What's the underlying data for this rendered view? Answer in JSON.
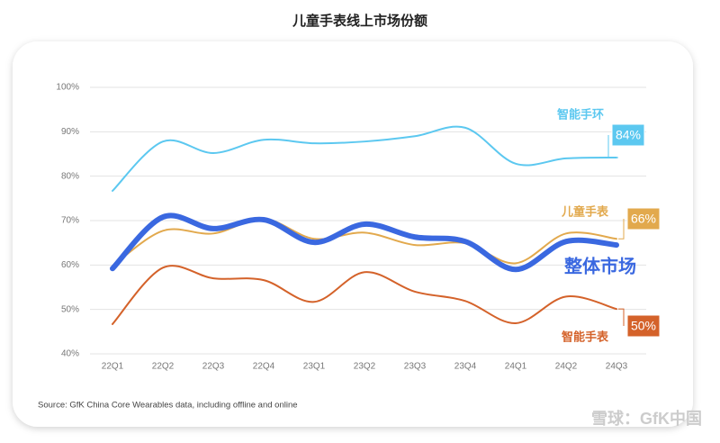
{
  "chart_data": {
    "type": "line",
    "title": "儿童手表线上市场份额",
    "categories": [
      "22Q1",
      "22Q2",
      "22Q3",
      "22Q4",
      "23Q1",
      "23Q2",
      "23Q3",
      "23Q4",
      "24Q1",
      "24Q2",
      "24Q3"
    ],
    "ylim": [
      40,
      100
    ],
    "yticks": [
      {
        "value": 40,
        "label": "40%"
      },
      {
        "value": 50,
        "label": "50%"
      },
      {
        "value": 60,
        "label": "60%"
      },
      {
        "value": 70,
        "label": "70%"
      },
      {
        "value": 80,
        "label": "80%"
      },
      {
        "value": 90,
        "label": "90%"
      },
      {
        "value": 100,
        "label": "100%"
      }
    ],
    "grid": true,
    "series": [
      {
        "name": "智能手环",
        "color": "#5cc8f0",
        "values": [
          76.7,
          87.8,
          85.2,
          88.2,
          87.4,
          87.8,
          89,
          90.9,
          82.8,
          84,
          84.2
        ],
        "value_labels": [
          null,
          null,
          null,
          null,
          null,
          null,
          null,
          null,
          null,
          null,
          "84%"
        ]
      },
      {
        "name": "儿童手表",
        "color": "#e2a94d",
        "values": [
          59.8,
          67.7,
          67.1,
          70.4,
          65.9,
          67.3,
          64.5,
          64.9,
          60.4,
          67.1,
          65.9
        ],
        "value_labels": [
          null,
          null,
          null,
          null,
          null,
          null,
          null,
          null,
          null,
          null,
          "66%"
        ]
      },
      {
        "name": "整体市场",
        "color": "#3a68e0",
        "values": [
          59.2,
          70.8,
          68.2,
          70.2,
          65.1,
          69.2,
          66.3,
          65.3,
          59,
          65.3,
          64.5
        ]
      },
      {
        "name": "智能手表",
        "color": "#d4622a",
        "values": [
          46.7,
          59.4,
          57,
          56.6,
          51.7,
          58.4,
          54,
          51.9,
          46.9,
          52.9,
          50.1
        ],
        "value_labels": [
          null,
          null,
          null,
          null,
          null,
          null,
          null,
          null,
          null,
          null,
          "50%"
        ]
      }
    ],
    "source": "Source: GfK China Core Wearables data, including offline and online",
    "watermark": "雪球：GfK中国"
  }
}
